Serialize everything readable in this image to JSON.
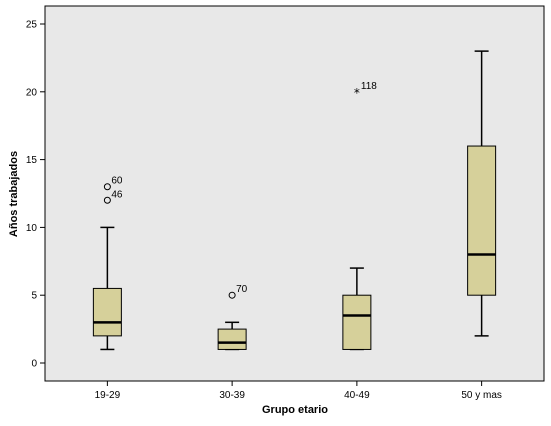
{
  "chart_data": {
    "type": "boxplot",
    "xlabel": "Grupo etario",
    "ylabel": "Años trabajados",
    "ylim": [
      -1.5,
      26
    ],
    "yticks": [
      0,
      5,
      10,
      15,
      20,
      25
    ],
    "grid": false,
    "colors": {
      "plot_background": "#e8e8e8",
      "box_fill": "#d6d09a",
      "stroke": "#000000"
    },
    "categories": [
      "19-29",
      "30-39",
      "40-49",
      "50 y mas"
    ],
    "boxes": [
      {
        "category": "19-29",
        "whisker_low": 1,
        "q1": 2,
        "median": 3,
        "q3": 5.5,
        "whisker_high": 10,
        "outliers": [
          {
            "value": 13,
            "label": "60",
            "marker": "circle"
          },
          {
            "value": 12,
            "label": "46",
            "marker": "circle"
          }
        ]
      },
      {
        "category": "30-39",
        "whisker_low": 1,
        "q1": 1,
        "median": 1.5,
        "q3": 2.5,
        "whisker_high": 3,
        "outliers": [
          {
            "value": 5,
            "label": "70",
            "marker": "circle"
          }
        ]
      },
      {
        "category": "40-49",
        "whisker_low": 1,
        "q1": 1,
        "median": 3.5,
        "q3": 5,
        "whisker_high": 7,
        "outliers": [
          {
            "value": 20,
            "label": "118",
            "marker": "star"
          }
        ]
      },
      {
        "category": "50 y mas",
        "whisker_low": 2,
        "q1": 5,
        "median": 8,
        "q3": 16,
        "whisker_high": 23,
        "outliers": []
      }
    ]
  }
}
